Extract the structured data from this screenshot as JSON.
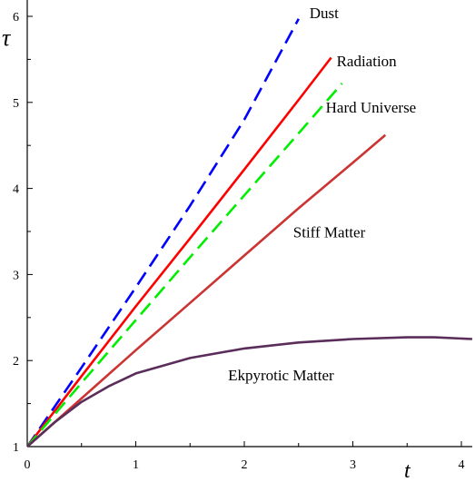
{
  "chart_data": {
    "type": "line",
    "xlabel": "t",
    "ylabel": "τ",
    "xlim": [
      0,
      4.1
    ],
    "ylim": [
      1,
      6.2
    ],
    "x_ticks": [
      0,
      1,
      2,
      3,
      4
    ],
    "y_ticks": [
      1,
      2,
      3,
      4,
      5,
      6
    ],
    "grid": false,
    "legend": "labels placed next to each curve",
    "series": [
      {
        "name": "Dust",
        "color": "#0000ff",
        "style": "dashed",
        "x": [
          0,
          0.5,
          1.0,
          1.5,
          2.0,
          2.5
        ],
        "y": [
          1.0,
          1.92,
          2.85,
          3.8,
          4.8,
          5.97
        ]
      },
      {
        "name": "Radiation",
        "color": "#ff0000",
        "style": "solid",
        "x": [
          0,
          0.5,
          1.0,
          1.5,
          2.0,
          2.5,
          2.8
        ],
        "y": [
          1.0,
          1.82,
          2.63,
          3.42,
          4.22,
          5.03,
          5.52
        ]
      },
      {
        "name": "Hard Universe",
        "color": "#00ee00",
        "style": "dashed",
        "x": [
          0,
          0.5,
          1.0,
          1.5,
          2.0,
          2.5,
          2.9
        ],
        "y": [
          1.0,
          1.74,
          2.47,
          3.2,
          3.92,
          4.64,
          5.22
        ]
      },
      {
        "name": "Stiff Matter",
        "color": "#cc3333",
        "style": "solid",
        "x": [
          0,
          0.5,
          1.0,
          1.5,
          2.0,
          2.5,
          3.0,
          3.3
        ],
        "y": [
          1.0,
          1.56,
          2.12,
          2.67,
          3.22,
          3.77,
          4.3,
          4.62
        ]
      },
      {
        "name": "Ekpyrotic Matter",
        "color": "#5a2d5a",
        "style": "solid",
        "x": [
          0,
          0.25,
          0.5,
          0.75,
          1.0,
          1.5,
          2.0,
          2.5,
          3.0,
          3.5,
          3.75,
          4.1
        ],
        "y": [
          1.0,
          1.28,
          1.52,
          1.7,
          1.85,
          2.03,
          2.14,
          2.21,
          2.25,
          2.27,
          2.27,
          2.25
        ]
      }
    ],
    "labels": [
      {
        "text": "Dust",
        "x": 2.6,
        "y": 5.98
      },
      {
        "text": "Radiation",
        "x": 2.85,
        "y": 5.42
      },
      {
        "text": "Hard Universe",
        "x": 2.75,
        "y": 4.88
      },
      {
        "text": "Stiff Matter",
        "x": 2.45,
        "y": 3.43
      },
      {
        "text": "Ekpyrotic Matter",
        "x": 1.85,
        "y": 1.77
      }
    ]
  }
}
